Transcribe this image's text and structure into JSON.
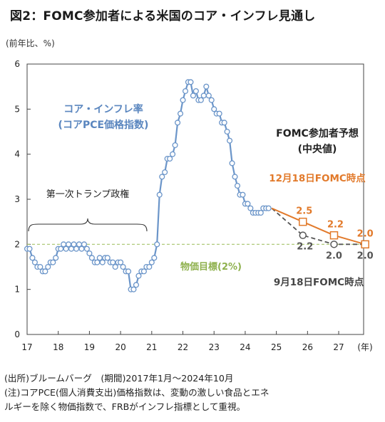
{
  "header": {
    "title": "図2：FOMC参加者による米国のコア・インフレ見通し",
    "unit": "(前年比、%)"
  },
  "chart_data": {
    "type": "line",
    "ylim": [
      0,
      6
    ],
    "yticks": [
      "0",
      "1",
      "2",
      "3",
      "4",
      "5",
      "6"
    ],
    "xlim": [
      17,
      27.8
    ],
    "xticks": [
      "17",
      "18",
      "19",
      "20",
      "21",
      "22",
      "23",
      "24",
      "25",
      "26",
      "27"
    ],
    "x_unit": "(年)",
    "target": {
      "value": 2.0,
      "label": "物価目標(2%)"
    },
    "series": [
      {
        "name": "コア・インフレ率",
        "subtitle": "(コアPCE価格指数)",
        "color": "#6b95c9",
        "x": [
          17.0,
          17.08,
          17.17,
          17.25,
          17.33,
          17.42,
          17.5,
          17.58,
          17.67,
          17.75,
          17.83,
          17.92,
          18.0,
          18.08,
          18.17,
          18.25,
          18.33,
          18.42,
          18.5,
          18.58,
          18.67,
          18.75,
          18.83,
          18.92,
          19.0,
          19.08,
          19.17,
          19.25,
          19.33,
          19.42,
          19.5,
          19.58,
          19.67,
          19.75,
          19.83,
          19.92,
          20.0,
          20.08,
          20.17,
          20.25,
          20.33,
          20.42,
          20.5,
          20.58,
          20.67,
          20.75,
          20.83,
          20.92,
          21.0,
          21.08,
          21.17,
          21.25,
          21.33,
          21.42,
          21.5,
          21.58,
          21.67,
          21.75,
          21.83,
          21.92,
          22.0,
          22.08,
          22.17,
          22.25,
          22.33,
          22.42,
          22.5,
          22.58,
          22.67,
          22.75,
          22.83,
          22.92,
          23.0,
          23.08,
          23.17,
          23.25,
          23.33,
          23.42,
          23.5,
          23.58,
          23.67,
          23.75,
          23.83,
          23.92,
          24.0,
          24.08,
          24.17,
          24.25,
          24.33,
          24.42,
          24.5,
          24.58,
          24.67,
          24.75
        ],
        "values": [
          1.9,
          1.9,
          1.7,
          1.6,
          1.5,
          1.5,
          1.4,
          1.4,
          1.5,
          1.6,
          1.6,
          1.7,
          1.9,
          1.9,
          2.0,
          1.9,
          2.0,
          1.9,
          2.0,
          1.9,
          2.0,
          1.9,
          2.0,
          1.9,
          1.8,
          1.7,
          1.6,
          1.6,
          1.7,
          1.6,
          1.7,
          1.7,
          1.6,
          1.6,
          1.5,
          1.6,
          1.6,
          1.5,
          1.4,
          1.4,
          1.0,
          1.0,
          1.1,
          1.3,
          1.4,
          1.4,
          1.5,
          1.5,
          1.6,
          1.7,
          2.0,
          3.1,
          3.5,
          3.6,
          3.9,
          3.9,
          4.0,
          4.2,
          4.7,
          4.9,
          5.2,
          5.4,
          5.6,
          5.6,
          5.3,
          5.4,
          5.2,
          5.2,
          5.3,
          5.5,
          5.3,
          5.2,
          5.0,
          4.9,
          4.9,
          4.7,
          4.7,
          4.5,
          4.3,
          3.8,
          3.5,
          3.3,
          3.1,
          3.1,
          2.9,
          2.9,
          2.8,
          2.7,
          2.7,
          2.7,
          2.7,
          2.8,
          2.8,
          2.8
        ]
      },
      {
        "name": "12月18日FOMC時点",
        "color": "#e27a2b",
        "x": [
          24.85,
          25.85,
          26.85,
          27.85
        ],
        "values": [
          2.8,
          2.5,
          2.2,
          2.0
        ],
        "labels": [
          "",
          "2.5",
          "2.2",
          "2.0"
        ]
      },
      {
        "name": "9月18日FOMC時点",
        "color": "#555555",
        "x": [
          24.85,
          25.85,
          26.85,
          27.85
        ],
        "values": [
          2.8,
          2.2,
          2.0,
          2.0
        ],
        "labels": [
          "",
          "2.2",
          "2.0",
          "2.0"
        ]
      }
    ],
    "annotations": {
      "trump_era": "第一次トランプ政権",
      "projection_title": "FOMC参加者予想",
      "projection_subtitle": "(中央値)"
    }
  },
  "notes": {
    "source": "(出所)ブルームバーグ　(期間)2017年1月～2024年10月",
    "note_line1": "(注)コアPCE(個人消費支出)価格指数は、変動の激しい食品とエネ",
    "note_line2": "ルギーを除く物価指数で、FRBがインフレ指標として重視。"
  },
  "colors": {
    "core_inflation": "#6b95c9",
    "december_projection": "#e27a2b",
    "september_projection": "#555555",
    "target_line": "#a5c46a"
  }
}
